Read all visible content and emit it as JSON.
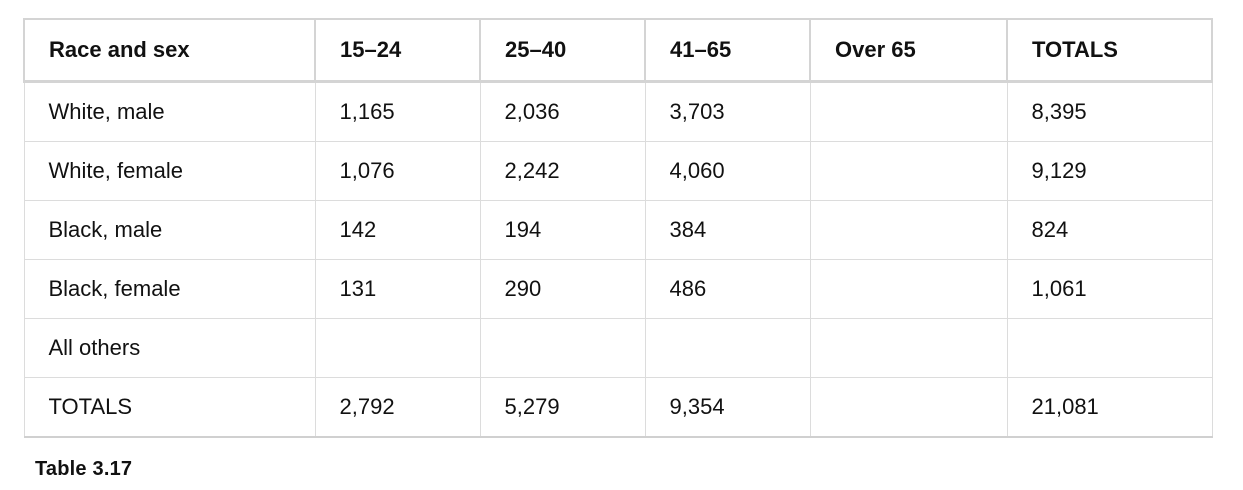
{
  "table": {
    "headers": [
      "Race and sex",
      "15–24",
      "25–40",
      "41–65",
      "Over 65",
      "TOTALS"
    ],
    "rows": [
      [
        "White, male",
        "1,165",
        "2,036",
        "3,703",
        "",
        "8,395"
      ],
      [
        "White, female",
        "1,076",
        "2,242",
        "4,060",
        "",
        "9,129"
      ],
      [
        "Black, male",
        "142",
        "194",
        "384",
        "",
        "824"
      ],
      [
        "Black, female",
        "131",
        "290",
        "486",
        "",
        "1,061"
      ],
      [
        "All others",
        "",
        "",
        "",
        "",
        ""
      ],
      [
        "TOTALS",
        "2,792",
        "5,279",
        "9,354",
        "",
        "21,081"
      ]
    ]
  },
  "caption": "Table  3.17"
}
